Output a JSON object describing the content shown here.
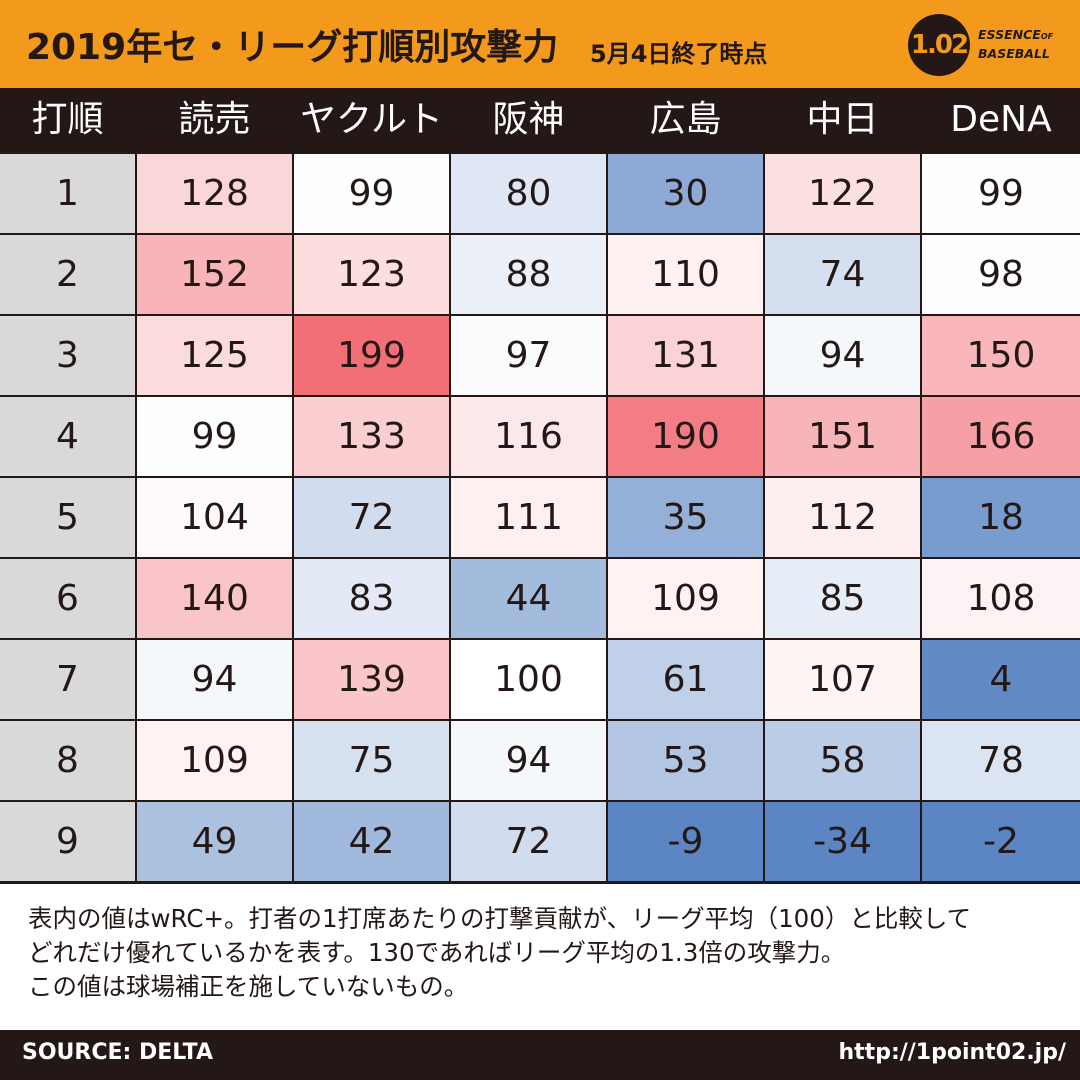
{
  "header": {
    "title": "2019年セ・リーグ打順別攻撃力",
    "subtitle": "5月4日終了時点",
    "logo_badge": "1.02",
    "logo_line1": "ESSENCE",
    "logo_line1_small": "OF",
    "logo_line2": "BASEBALL"
  },
  "chart_data": {
    "type": "table",
    "title": "2019年セ・リーグ打順別攻撃力",
    "subtitle": "5月4日終了時点",
    "corner_label": "打順",
    "columns": [
      "読売",
      "ヤクルト",
      "阪神",
      "広島",
      "中日",
      "DeNA"
    ],
    "rows": [
      {
        "order": "1",
        "values": [
          128,
          99,
          80,
          30,
          122,
          99
        ]
      },
      {
        "order": "2",
        "values": [
          152,
          123,
          88,
          110,
          74,
          98
        ]
      },
      {
        "order": "3",
        "values": [
          125,
          199,
          97,
          131,
          94,
          150
        ]
      },
      {
        "order": "4",
        "values": [
          99,
          133,
          116,
          190,
          151,
          166
        ]
      },
      {
        "order": "5",
        "values": [
          104,
          72,
          111,
          35,
          112,
          18
        ]
      },
      {
        "order": "6",
        "values": [
          140,
          83,
          44,
          109,
          85,
          108
        ]
      },
      {
        "order": "7",
        "values": [
          94,
          139,
          100,
          61,
          107,
          4
        ]
      },
      {
        "order": "8",
        "values": [
          109,
          75,
          94,
          53,
          58,
          78
        ]
      },
      {
        "order": "9",
        "values": [
          49,
          42,
          72,
          -9,
          -34,
          -2
        ]
      }
    ],
    "metric": "wRC+",
    "baseline": 100,
    "colors": {
      "high": "#f26e76",
      "mid": "#ffffff",
      "low": "#5b86c3"
    }
  },
  "note": {
    "line1": "表内の値はwRC+。打者の1打席あたりの打撃貢献が、リーグ平均（100）と比較して",
    "line2": "どれだけ優れているかを表す。130であればリーグ平均の1.3倍の攻撃力。",
    "line3": "この値は球場補正を施していないもの。"
  },
  "footer": {
    "source": "SOURCE: DELTA",
    "url": "http://1point02.jp/"
  }
}
